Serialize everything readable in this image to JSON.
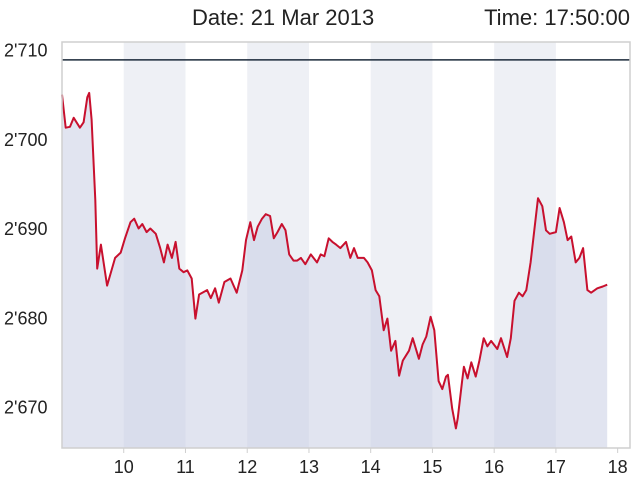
{
  "chart_data": {
    "type": "line",
    "date_label": "Date: 21 Mar 2013",
    "time_label": "Time: 17:50:00",
    "color": "#c8102e",
    "area_color": "#c9cee3",
    "band_color": "#eef0f5",
    "reference_line": 2709.1,
    "reference_color": "#1b2a3a",
    "xlim": [
      9,
      18.2
    ],
    "xticks": [
      10,
      11,
      12,
      13,
      14,
      15,
      16,
      17,
      18
    ],
    "ylim": [
      2665.6,
      2711.1
    ],
    "yticks": [
      {
        "value": 2670,
        "label": "2'670"
      },
      {
        "value": 2680,
        "label": "2'680"
      },
      {
        "value": 2690,
        "label": "2'690"
      },
      {
        "value": 2700,
        "label": "2'700"
      },
      {
        "value": 2710,
        "label": "2'710"
      }
    ],
    "x": [
      9.0,
      9.06,
      9.13,
      9.19,
      9.29,
      9.35,
      9.41,
      9.44,
      9.48,
      9.54,
      9.57,
      9.63,
      9.73,
      9.86,
      9.95,
      10.02,
      10.11,
      10.17,
      10.24,
      10.3,
      10.37,
      10.43,
      10.52,
      10.59,
      10.65,
      10.71,
      10.78,
      10.84,
      10.9,
      10.97,
      11.03,
      11.1,
      11.16,
      11.22,
      11.35,
      11.41,
      11.48,
      11.54,
      11.63,
      11.73,
      11.83,
      11.92,
      11.98,
      12.05,
      12.11,
      12.17,
      12.24,
      12.3,
      12.37,
      12.43,
      12.49,
      12.56,
      12.62,
      12.68,
      12.75,
      12.81,
      12.87,
      12.94,
      13.03,
      13.13,
      13.19,
      13.25,
      13.32,
      13.38,
      13.44,
      13.51,
      13.6,
      13.67,
      13.73,
      13.79,
      13.89,
      13.95,
      14.02,
      14.08,
      14.14,
      14.21,
      14.27,
      14.33,
      14.4,
      14.46,
      14.52,
      14.62,
      14.68,
      14.78,
      14.84,
      14.9,
      14.97,
      15.03,
      15.1,
      15.16,
      15.22,
      15.25,
      15.32,
      15.38,
      15.41,
      15.48,
      15.51,
      15.57,
      15.63,
      15.7,
      15.76,
      15.83,
      15.89,
      15.95,
      16.05,
      16.11,
      16.21,
      16.27,
      16.33,
      16.4,
      16.46,
      16.52,
      16.59,
      16.65,
      16.71,
      16.78,
      16.84,
      16.9,
      17.0,
      17.06,
      17.13,
      17.19,
      17.25,
      17.32,
      17.38,
      17.44,
      17.51,
      17.57,
      17.67,
      17.76,
      17.83
    ],
    "values": [
      2705.2,
      2701.5,
      2701.6,
      2702.6,
      2701.5,
      2702.1,
      2704.9,
      2705.4,
      2702.4,
      2693.4,
      2685.7,
      2688.4,
      2683.8,
      2686.9,
      2687.5,
      2689.1,
      2690.9,
      2691.3,
      2690.2,
      2690.7,
      2689.8,
      2690.2,
      2689.6,
      2688.0,
      2686.4,
      2688.4,
      2686.9,
      2688.7,
      2685.7,
      2685.3,
      2685.5,
      2684.6,
      2680.1,
      2682.8,
      2683.3,
      2682.4,
      2683.5,
      2681.9,
      2684.2,
      2684.6,
      2683.0,
      2685.5,
      2688.9,
      2690.9,
      2688.9,
      2690.4,
      2691.3,
      2691.8,
      2691.6,
      2689.1,
      2689.8,
      2690.7,
      2690.0,
      2687.3,
      2686.6,
      2686.6,
      2686.9,
      2686.2,
      2687.3,
      2686.4,
      2687.3,
      2687.1,
      2689.1,
      2688.7,
      2688.4,
      2688.0,
      2688.7,
      2686.9,
      2688.0,
      2686.9,
      2686.9,
      2686.4,
      2685.5,
      2683.3,
      2682.6,
      2678.8,
      2680.1,
      2676.5,
      2677.6,
      2673.7,
      2675.4,
      2676.5,
      2677.9,
      2675.6,
      2677.2,
      2678.1,
      2680.3,
      2678.8,
      2673.1,
      2672.2,
      2673.6,
      2673.8,
      2670.0,
      2667.8,
      2668.9,
      2673.1,
      2674.7,
      2673.4,
      2675.2,
      2673.6,
      2675.4,
      2677.9,
      2677.0,
      2677.6,
      2676.7,
      2677.9,
      2675.8,
      2677.9,
      2682.1,
      2683.0,
      2682.6,
      2683.3,
      2686.4,
      2690.0,
      2693.6,
      2692.7,
      2690.0,
      2689.6,
      2689.8,
      2692.5,
      2690.9,
      2688.9,
      2689.3,
      2686.4,
      2686.9,
      2688.0,
      2683.3,
      2683.0,
      2683.5,
      2683.7,
      2683.9
    ]
  }
}
